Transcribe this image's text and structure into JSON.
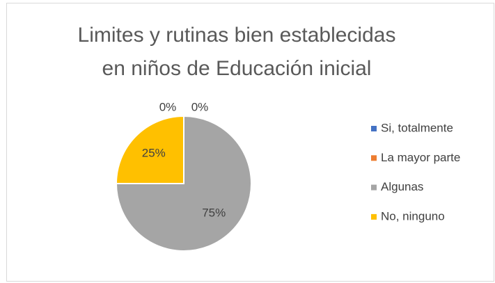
{
  "chart_data": {
    "type": "pie",
    "title": [
      "Limites y rutinas bien establecidas",
      "en niños de Educación inicial"
    ],
    "categories": [
      "Si, totalmente",
      "La mayor parte",
      "Algunas",
      "No, ninguno"
    ],
    "values": [
      0,
      0,
      75,
      25
    ],
    "value_labels": [
      "0%",
      "0%",
      "75%",
      "25%"
    ],
    "colors": [
      "#4472c4",
      "#ed7d31",
      "#a5a5a5",
      "#ffc000"
    ],
    "legend": "right"
  }
}
